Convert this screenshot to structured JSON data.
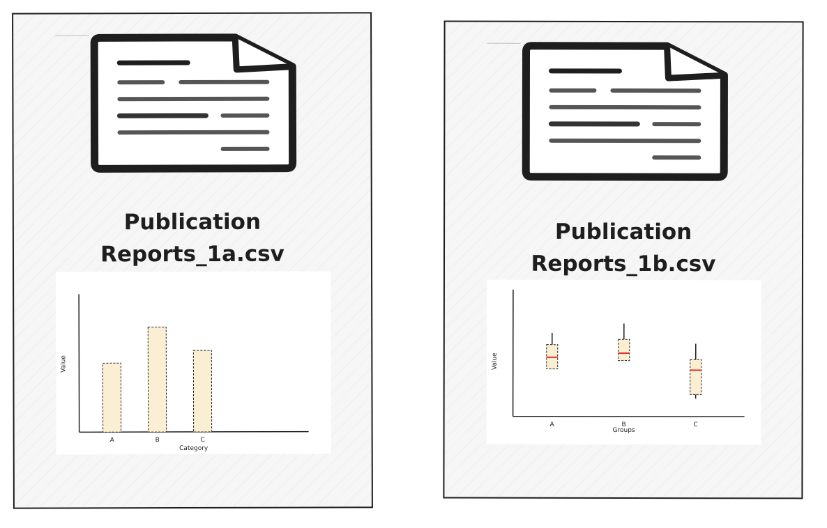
{
  "cards": [
    {
      "title_line1": "Publication",
      "title_line2": "Reports_1a.csv"
    },
    {
      "title_line1": "Publication",
      "title_line2": "Reports_1b.csv"
    }
  ],
  "icons": {
    "document": "document-icon"
  },
  "colors": {
    "stroke": "#1e1e1e",
    "fill": "#fbefd3",
    "median": "#e03131"
  },
  "chart_data": [
    {
      "type": "bar",
      "categories": [
        "A",
        "B",
        "C"
      ],
      "values": [
        50,
        76,
        59
      ],
      "xlabel": "Category",
      "ylabel": "Value",
      "ylim": [
        0,
        100
      ]
    },
    {
      "type": "box",
      "categories": [
        "A",
        "B",
        "C"
      ],
      "series": [
        {
          "category": "A",
          "whisker_low": 45,
          "q1": 45,
          "median": 56,
          "q3": 68,
          "whisker_high": 79
        },
        {
          "category": "B",
          "whisker_low": 53,
          "q1": 53,
          "median": 60,
          "q3": 73,
          "whisker_high": 88
        },
        {
          "category": "C",
          "whisker_low": 17,
          "q1": 21,
          "median": 44,
          "q3": 54,
          "whisker_high": 69
        }
      ],
      "xlabel": "Groups",
      "ylabel": "Value",
      "ylim": [
        0,
        120
      ]
    }
  ]
}
